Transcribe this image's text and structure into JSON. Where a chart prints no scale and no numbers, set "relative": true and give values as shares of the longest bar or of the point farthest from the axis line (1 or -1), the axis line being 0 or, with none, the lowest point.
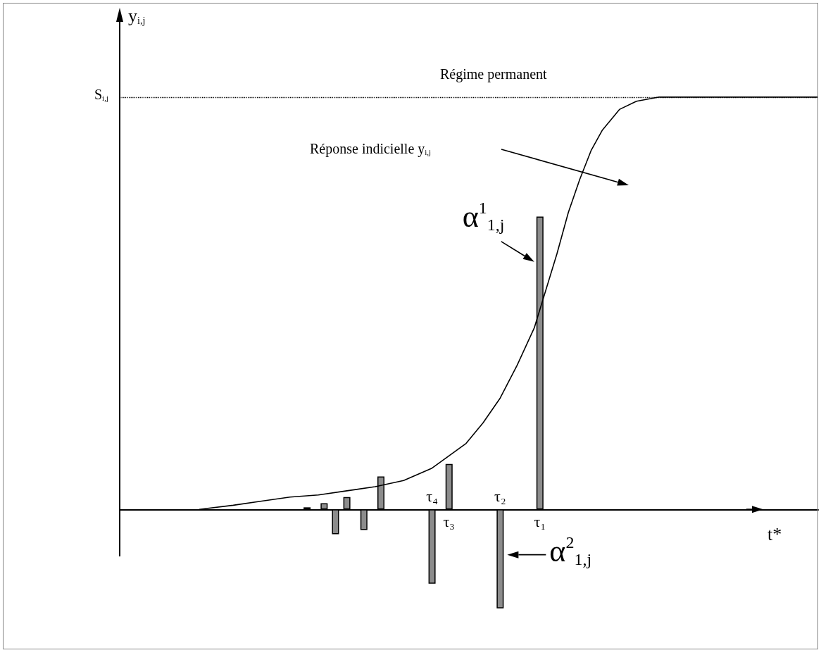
{
  "chart_data": {
    "type": "bar",
    "relative": true,
    "ylabel": "y$_{i,j}$",
    "xlabel": "t*",
    "categories": [
      null,
      null,
      null,
      null,
      null,
      null,
      null,
      null,
      null,
      null,
      null,
      null,
      null,
      null,
      null,
      null,
      null,
      null,
      null,
      null,
      null,
      null,
      null,
      null,
      null,
      null,
      null,
      null,
      null,
      null,
      null,
      null,
      null,
      null,
      null,
      null,
      null,
      null,
      null,
      null,
      null,
      null,
      null,
      null,
      null,
      null,
      null,
      null,
      null,
      null,
      null,
      null,
      null,
      null,
      null,
      "τ₄",
      null,
      null,
      "τ₃",
      null,
      null,
      null,
      null,
      null,
      null,
      null,
      null,
      "τ₂",
      null,
      null,
      null,
      null,
      null,
      null,
      "τ₁",
      null,
      null,
      null,
      null,
      null,
      null,
      null,
      null,
      null,
      null,
      null,
      null,
      null,
      null,
      null,
      null,
      null,
      null,
      null,
      null,
      null,
      null,
      null,
      null,
      null,
      null,
      null,
      null,
      null,
      null,
      null,
      null,
      null,
      null,
      null,
      null,
      null,
      null,
      null,
      null,
      null,
      null,
      null,
      null,
      null,
      null,
      null,
      null,
      null
    ],
    "series": [
      {
        "type": "line",
        "color": "#000000",
        "values": [
          null,
          null,
          null,
          null,
          null,
          null,
          null,
          null,
          null,
          null,
          null,
          null,
          null,
          null,
          0,
          null,
          null,
          null,
          null,
          null,
          0.01,
          null,
          null,
          null,
          null,
          0.02,
          null,
          null,
          null,
          null,
          0.03,
          null,
          null,
          null,
          null,
          0.035,
          null,
          null,
          null,
          null,
          0.045,
          null,
          null,
          null,
          null,
          0.055,
          null,
          null,
          null,
          null,
          0.07,
          null,
          null,
          null,
          null,
          0.1,
          null,
          null,
          0.13,
          null,
          null,
          0.16,
          null,
          null,
          0.21,
          null,
          null,
          0.27,
          null,
          null,
          0.35,
          null,
          null,
          0.44,
          null,
          0.53,
          null,
          0.62,
          null,
          0.72,
          null,
          0.8,
          null,
          0.87,
          null,
          0.92,
          null,
          null,
          0.97,
          null,
          null,
          0.99,
          null,
          null,
          null,
          1,
          null,
          null,
          null,
          null,
          null,
          null,
          null,
          null,
          null,
          null,
          null,
          null,
          null,
          null,
          null,
          null,
          null,
          null,
          null,
          null,
          null,
          null,
          null,
          null,
          null,
          null,
          null,
          1
        ]
      },
      {
        "color": "#8c8c8c",
        "values": [
          null,
          null,
          null,
          null,
          null,
          null,
          null,
          null,
          null,
          null,
          null,
          null,
          null,
          null,
          null,
          null,
          null,
          null,
          null,
          null,
          null,
          null,
          null,
          null,
          null,
          null,
          null,
          null,
          null,
          null,
          null,
          null,
          null,
          0.005,
          null,
          null,
          0.015,
          null,
          -0.06,
          null,
          0.03,
          null,
          null,
          -0.05,
          null,
          null,
          0.08,
          null,
          null,
          null,
          null,
          null,
          null,
          null,
          null,
          -0.18,
          null,
          null,
          0.11,
          null,
          null,
          null,
          null,
          null,
          null,
          null,
          null,
          -0.24,
          null,
          null,
          null,
          null,
          null,
          null,
          0.71,
          null,
          null,
          null,
          null,
          null,
          null,
          null,
          null,
          null,
          null,
          null,
          null,
          null,
          null,
          null,
          null,
          null,
          null,
          null,
          null,
          null,
          null,
          null,
          null,
          null,
          null,
          null,
          null,
          null,
          null,
          null,
          null,
          null,
          null,
          null,
          null,
          null,
          null,
          null,
          null,
          null,
          null,
          null,
          null,
          null,
          null,
          null,
          null,
          null
        ]
      }
    ],
    "ref_lines": [
      {
        "axis": "y",
        "value": 1,
        "label": "S$_{i,j}$",
        "line_style": "dotted"
      }
    ],
    "annotations": [
      "Régime permanent",
      "Réponse indicielle y$_{i,j}$",
      {
        "text": "α$^{1}$$_{1,j}$",
        "x": "τ₁",
        "y": 0.59
      },
      {
        "text": "α$^{2}$$_{1,j}$",
        "x": "τ₂",
        "y": -0.11
      }
    ]
  }
}
